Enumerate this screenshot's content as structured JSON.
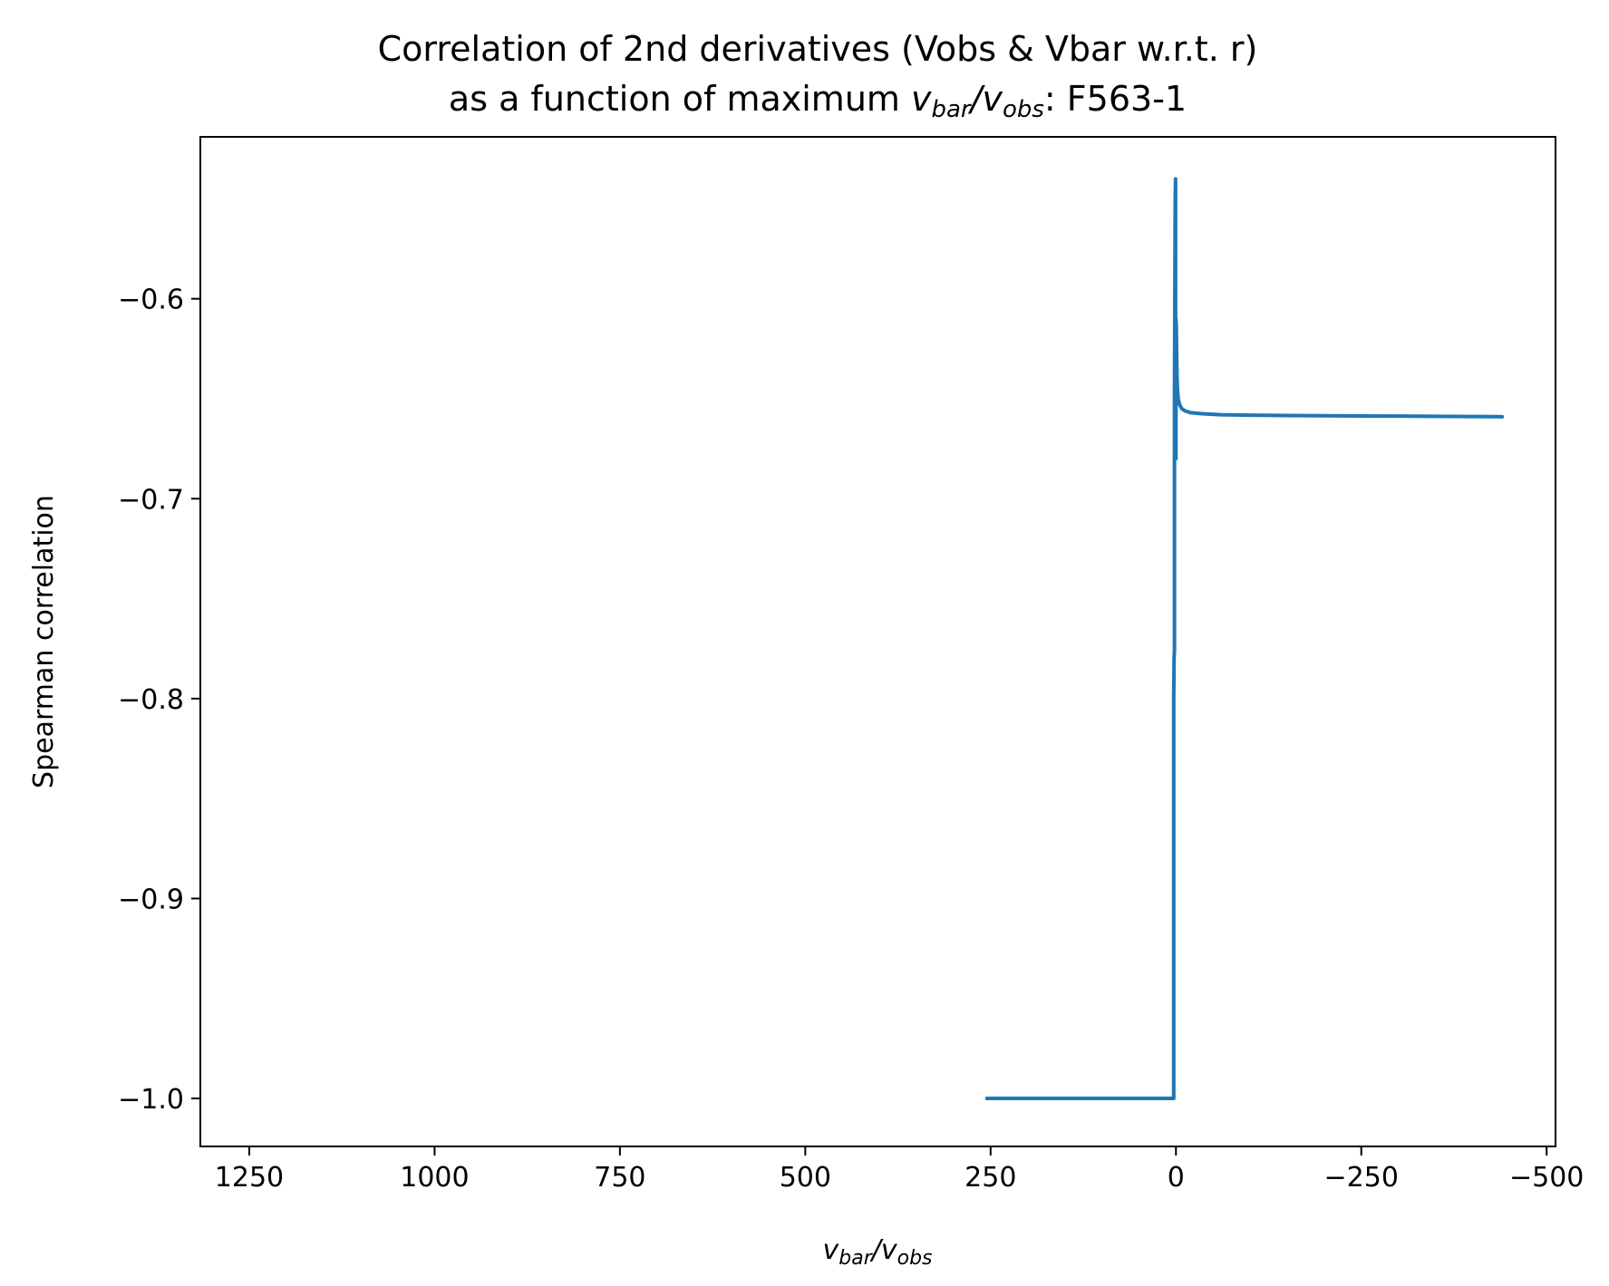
{
  "chart_data": {
    "type": "line",
    "title_line1": "Correlation of 2nd derivatives (Vobs & Vbar w.r.t. r)",
    "title_line2_prefix": "as a function of maximum ",
    "title_line2_var1": "v",
    "title_line2_sub1": "bar",
    "title_line2_slash": "/",
    "title_line2_var2": "v",
    "title_line2_sub2": "obs",
    "title_line2_suffix": ": F563-1",
    "xlabel_var1": "v",
    "xlabel_sub1": "bar",
    "xlabel_slash": "/",
    "xlabel_var2": "v",
    "xlabel_sub2": "obs",
    "ylabel": "Spearman correlation",
    "xlim": [
      1316,
      -512
    ],
    "ylim": [
      -1.024,
      -0.519
    ],
    "x_inverted": true,
    "xticks": [
      1250,
      1000,
      750,
      500,
      250,
      0,
      -250,
      -500
    ],
    "xtick_labels": [
      "1250",
      "1000",
      "750",
      "500",
      "250",
      "0",
      "−250",
      "−500"
    ],
    "yticks": [
      -0.6,
      -0.7,
      -0.8,
      -0.9,
      -1.0
    ],
    "ytick_labels": [
      "−0.6",
      "−0.7",
      "−0.8",
      "−0.9",
      "−1.0"
    ],
    "grid": false,
    "series_color": "#1f77b4",
    "series": [
      {
        "x": [
          255,
          200,
          150,
          100,
          50,
          10,
          3,
          3,
          3,
          3,
          3,
          2.5,
          2,
          2,
          2,
          1.5,
          1,
          0.5,
          0.5,
          0,
          0,
          -0.5,
          -1,
          -1.5,
          -2,
          -3,
          -5,
          -8,
          -12,
          -20,
          -35,
          -60,
          -100,
          -150,
          -200,
          -250,
          -300,
          -350,
          -400,
          -440
        ],
        "y": [
          -1.0,
          -1.0,
          -1.0,
          -1.0,
          -1.0,
          -1.0,
          -1.0,
          -0.95,
          -0.88,
          -0.83,
          -0.8,
          -0.78,
          -0.775,
          -0.7,
          -0.65,
          -0.6,
          -0.55,
          -0.54,
          -0.6,
          -0.68,
          -0.61,
          -0.615,
          -0.63,
          -0.64,
          -0.645,
          -0.65,
          -0.653,
          -0.655,
          -0.656,
          -0.657,
          -0.6575,
          -0.658,
          -0.6582,
          -0.6584,
          -0.6585,
          -0.6586,
          -0.6587,
          -0.6588,
          -0.6589,
          -0.659
        ]
      }
    ]
  }
}
